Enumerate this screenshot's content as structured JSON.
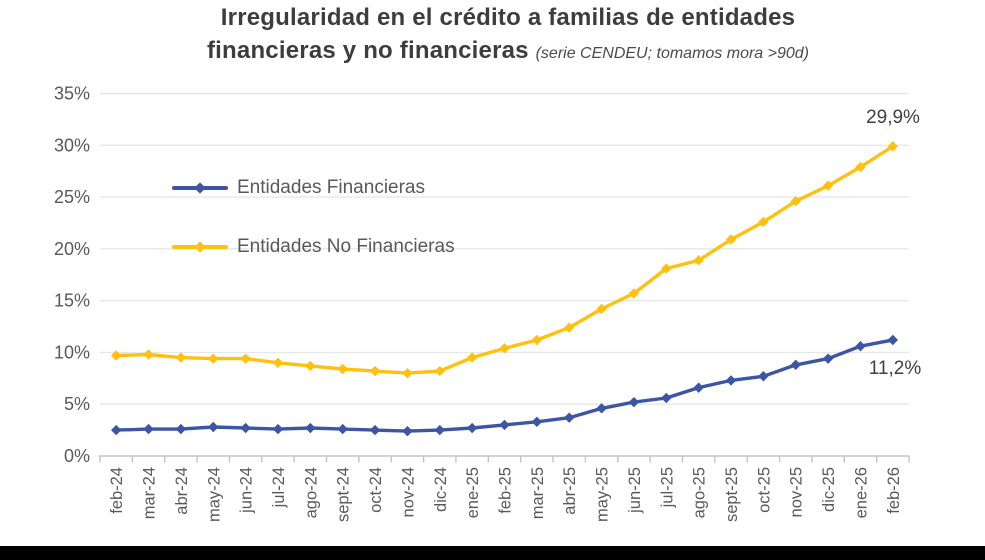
{
  "title": {
    "line1": "Irregularidad en el crédito a familias de entidades",
    "line2": "financieras y no financieras",
    "subtitle_note": "(serie CENDEU; tomamos mora >90d)"
  },
  "chart_data": {
    "type": "line",
    "title": "Irregularidad en el crédito a familias de entidades financieras y no financieras",
    "subtitle": "(serie CENDEU; tomamos mora >90d)",
    "xlabel": "",
    "ylabel": "",
    "ylim": [
      0,
      35
    ],
    "ytick_step": 5,
    "yticks": [
      "0%",
      "5%",
      "10%",
      "15%",
      "20%",
      "25%",
      "30%",
      "35%"
    ],
    "grid": true,
    "legend_position": "inside-top-left",
    "categories": [
      "feb-24",
      "mar-24",
      "abr-24",
      "may-24",
      "jun-24",
      "jul-24",
      "ago-24",
      "sept-24",
      "oct-24",
      "nov-24",
      "dic-24",
      "ene-25",
      "feb-25",
      "mar-25",
      "abr-25",
      "may-25",
      "jun-25",
      "jul-25",
      "ago-25",
      "sept-25",
      "oct-25",
      "nov-25",
      "dic-25",
      "ene-26",
      "feb-26"
    ],
    "series": [
      {
        "name": "Entidades Financieras",
        "color": "#3C55A4",
        "values": [
          2.5,
          2.6,
          2.6,
          2.8,
          2.7,
          2.6,
          2.7,
          2.6,
          2.5,
          2.4,
          2.5,
          2.7,
          3.0,
          3.3,
          3.7,
          4.6,
          5.2,
          5.6,
          6.6,
          7.3,
          7.7,
          8.8,
          9.4,
          10.6,
          11.2
        ],
        "end_label": "11,2%"
      },
      {
        "name": "Entidades No Financieras",
        "color": "#FFC010",
        "values": [
          9.7,
          9.8,
          9.5,
          9.4,
          9.4,
          9.0,
          8.7,
          8.4,
          8.2,
          8.0,
          8.2,
          9.5,
          10.4,
          11.2,
          12.4,
          14.2,
          15.7,
          18.1,
          18.9,
          20.9,
          22.6,
          24.6,
          26.1,
          27.9,
          29.9
        ],
        "end_label": "29,9%"
      }
    ]
  },
  "colors": {
    "blue_series": "#3C55A4",
    "yellow_series": "#FFC010",
    "title_text": "#3D3D3D",
    "axis_text": "#595959",
    "gridline": "#E7E7E7",
    "axis_line": "#C4C4C4",
    "annotation_text": "#404040",
    "bottom_bar": "#000000"
  }
}
